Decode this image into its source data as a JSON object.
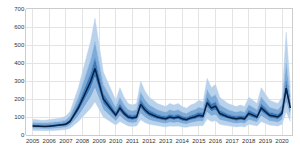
{
  "chart_data": {
    "type": "fan",
    "x": [
      2005,
      2005.25,
      2005.5,
      2005.75,
      2006,
      2006.25,
      2006.5,
      2006.75,
      2007,
      2007.25,
      2007.5,
      2007.75,
      2008,
      2008.25,
      2008.5,
      2008.75,
      2009,
      2009.25,
      2009.5,
      2009.75,
      2010,
      2010.25,
      2010.5,
      2010.75,
      2011,
      2011.25,
      2011.5,
      2011.75,
      2012,
      2012.25,
      2012.5,
      2012.75,
      2013,
      2013.25,
      2013.5,
      2013.75,
      2014,
      2014.25,
      2014.5,
      2014.75,
      2015,
      2015.25,
      2015.5,
      2015.75,
      2016,
      2016.25,
      2016.5,
      2016.75,
      2017,
      2017.25,
      2017.5,
      2017.75,
      2018,
      2018.25,
      2018.5,
      2018.75,
      2019,
      2019.25,
      2019.5,
      2019.75,
      2020,
      2020.25,
      2020.5
    ],
    "series": [
      {
        "type": "line",
        "color": "#b9d2ec",
        "values": [
          25,
          24,
          24,
          24,
          24,
          25,
          26,
          28,
          30,
          38,
          55,
          75,
          100,
          125,
          150,
          185,
          140,
          100,
          85,
          70,
          55,
          75,
          60,
          50,
          48,
          50,
          85,
          70,
          60,
          55,
          50,
          48,
          45,
          50,
          48,
          50,
          45,
          43,
          48,
          50,
          55,
          53,
          90,
          75,
          80,
          60,
          55,
          50,
          48,
          45,
          48,
          45,
          60,
          55,
          50,
          75,
          65,
          55,
          53,
          50,
          60,
          130,
          75
        ]
      },
      {
        "type": "area",
        "color": "#b9d2ec",
        "values": [
          35,
          34,
          33,
          33,
          34,
          35,
          36,
          39,
          42,
          53,
          77,
          105,
          140,
          175,
          210,
          259,
          196,
          140,
          119,
          98,
          77,
          105,
          84,
          70,
          67,
          70,
          119,
          98,
          84,
          77,
          70,
          67,
          63,
          70,
          67,
          70,
          63,
          60,
          67,
          70,
          77,
          74,
          126,
          105,
          112,
          84,
          77,
          70,
          67,
          63,
          67,
          63,
          84,
          77,
          70,
          105,
          91,
          77,
          74,
          70,
          84,
          182,
          105
        ]
      },
      {
        "type": "area",
        "color": "#7eaad8",
        "values": [
          44,
          42,
          41,
          41,
          42,
          44,
          45,
          48,
          52,
          65,
          96,
          131,
          174,
          218,
          261,
          322,
          244,
          174,
          148,
          122,
          96,
          131,
          104,
          87,
          83,
          87,
          148,
          122,
          104,
          96,
          87,
          83,
          78,
          87,
          83,
          87,
          78,
          74,
          83,
          87,
          96,
          91,
          157,
          131,
          139,
          104,
          96,
          87,
          83,
          78,
          83,
          78,
          104,
          96,
          87,
          131,
          113,
          96,
          91,
          87,
          104,
          226,
          131
        ]
      },
      {
        "type": "area",
        "color": "#3a78b8",
        "values": [
          58,
          55,
          54,
          54,
          55,
          58,
          60,
          63,
          69,
          86,
          127,
          173,
          230,
          288,
          345,
          426,
          322,
          230,
          196,
          161,
          127,
          173,
          138,
          115,
          109,
          115,
          196,
          161,
          138,
          127,
          115,
          109,
          104,
          115,
          109,
          115,
          104,
          98,
          109,
          115,
          127,
          121,
          207,
          173,
          184,
          138,
          127,
          115,
          109,
          104,
          109,
          104,
          138,
          127,
          115,
          173,
          150,
          127,
          121,
          115,
          138,
          300,
          173
        ]
      },
      {
        "type": "area",
        "color": "#7eaad8",
        "values": [
          70,
          67,
          66,
          66,
          67,
          70,
          73,
          77,
          84,
          105,
          154,
          210,
          280,
          350,
          420,
          518,
          392,
          280,
          238,
          196,
          154,
          210,
          168,
          140,
          133,
          140,
          238,
          196,
          168,
          154,
          140,
          133,
          126,
          140,
          133,
          140,
          126,
          119,
          133,
          140,
          154,
          147,
          252,
          210,
          224,
          168,
          154,
          140,
          133,
          126,
          133,
          126,
          168,
          154,
          140,
          210,
          182,
          154,
          147,
          140,
          168,
          400,
          210
        ]
      },
      {
        "type": "area",
        "color": "#b9d2ec",
        "values": [
          88,
          84,
          82,
          82,
          84,
          88,
          91,
          96,
          105,
          131,
          193,
          263,
          350,
          438,
          525,
          648,
          490,
          350,
          298,
          245,
          193,
          263,
          210,
          175,
          166,
          175,
          298,
          245,
          210,
          193,
          175,
          166,
          158,
          175,
          166,
          175,
          158,
          149,
          166,
          175,
          193,
          184,
          315,
          263,
          280,
          210,
          193,
          175,
          166,
          158,
          166,
          158,
          210,
          193,
          175,
          263,
          228,
          193,
          184,
          175,
          210,
          570,
          263
        ]
      },
      {
        "type": "line",
        "color": "#0b1f3f",
        "values": [
          50,
          48,
          47,
          47,
          48,
          50,
          52,
          55,
          60,
          75,
          110,
          150,
          200,
          250,
          300,
          370,
          280,
          200,
          170,
          140,
          110,
          150,
          120,
          100,
          95,
          100,
          170,
          140,
          120,
          110,
          100,
          95,
          90,
          100,
          95,
          100,
          90,
          85,
          95,
          100,
          110,
          105,
          180,
          150,
          160,
          120,
          110,
          100,
          95,
          90,
          95,
          90,
          120,
          110,
          100,
          150,
          130,
          110,
          105,
          100,
          120,
          260,
          150
        ]
      }
    ],
    "xlim": [
      2004.6,
      2020.6
    ],
    "xticks": [
      2005,
      2006,
      2007,
      2008,
      2009,
      2010,
      2011,
      2012,
      2013,
      2014,
      2015,
      2016,
      2017,
      2018,
      2019,
      2020
    ],
    "ylim": [
      0,
      700
    ],
    "yticks": [
      0,
      100,
      200,
      300,
      400,
      500,
      600,
      700
    ],
    "grid": true
  }
}
